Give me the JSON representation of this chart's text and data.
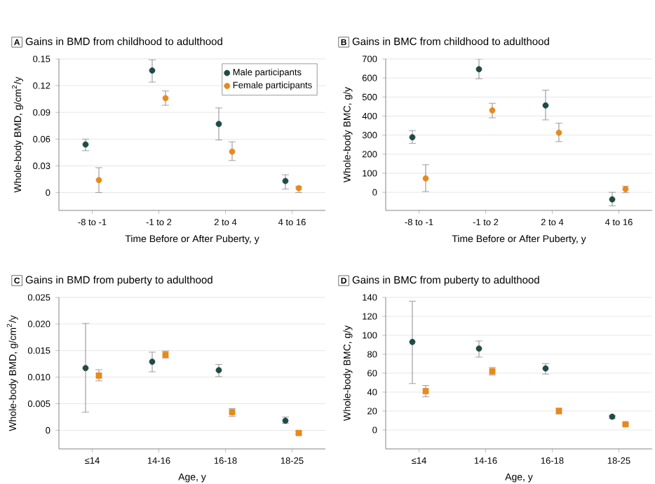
{
  "chart_data": [
    {
      "type": "scatter",
      "title": "Gains in BMD from childhood to adulthood",
      "annotations": [
        "A"
      ],
      "xlabel": "Time Before or After Puberty, y",
      "ylabel": "Whole-body BMD, g/cm$^{2}$/y",
      "categories": [
        "-8 to -1",
        "-1 to 2",
        "2 to 4",
        "4 to 16"
      ],
      "ylim": [
        -0.02,
        0.15
      ],
      "yticks": [
        0,
        0.03,
        0.06,
        0.09,
        0.12,
        0.15
      ],
      "grid": "y",
      "legend": "top right",
      "series": [
        {
          "name": "Male participants",
          "color": "#1f4a45",
          "marker": "circle",
          "values": [
            0.054,
            0.137,
            0.077,
            0.013
          ],
          "errors": [
            [
              0.047,
              0.06
            ],
            [
              0.124,
              0.149
            ],
            [
              0.059,
              0.095
            ],
            [
              0.004,
              0.02
            ]
          ]
        },
        {
          "name": "Female participants",
          "color": "#e8891c",
          "marker": "circle",
          "values": [
            0.014,
            0.106,
            0.046,
            0.005
          ],
          "errors": [
            [
              0,
              0.028
            ],
            [
              0.098,
              0.114
            ],
            [
              0.036,
              0.057
            ],
            [
              0,
              0.007
            ]
          ]
        }
      ]
    },
    {
      "type": "scatter",
      "title": "Gains in BMC from childhood to adulthood",
      "annotations": [
        "B"
      ],
      "xlabel": "Time Before or After Puberty, y",
      "ylabel": "Whole-body BMC, g/y",
      "categories": [
        "-8 to -1",
        "-1 to 2",
        "2 to 4",
        "4 to 16"
      ],
      "ylim": [
        -95,
        700
      ],
      "yticks": [
        0,
        100,
        200,
        300,
        400,
        500,
        600,
        700
      ],
      "grid": "y",
      "series": [
        {
          "color": "#1f4a45",
          "marker": "circle",
          "values": [
            289,
            646,
            456,
            -37
          ],
          "errors": [
            [
              257,
              324
            ],
            [
              596,
              700
            ],
            [
              380,
              536
            ],
            [
              -71,
              0
            ]
          ]
        },
        {
          "color": "#e8891c",
          "marker": "circle",
          "values": [
            73,
            430,
            313,
            17
          ],
          "errors": [
            [
              4,
              145
            ],
            [
              391,
              467
            ],
            [
              266,
              363
            ],
            [
              -2,
              32
            ]
          ]
        }
      ]
    },
    {
      "type": "scatter",
      "title": "Gains in BMD from puberty to adulthood",
      "annotations": [
        "C"
      ],
      "xlabel": "Age, y",
      "ylabel": "Whole-body BMD, g/cm$^{2}$/y",
      "categories": [
        "≤14",
        "14-16",
        "16-18",
        "18-25"
      ],
      "ylim": [
        -0.0035,
        0.025
      ],
      "yticks": [
        0,
        0.005,
        {
          "value": 0.01,
          "label": "0.010"
        },
        0.015,
        {
          "value": 0.02,
          "label": "0.020"
        },
        0.025
      ],
      "grid": "y",
      "series": [
        {
          "color": "#1f4a45",
          "marker": "circle",
          "values": [
            0.0117,
            0.0129,
            0.0113,
            0.0018
          ],
          "errors": [
            [
              0.0034,
              0.0201
            ],
            [
              0.011,
              0.0147
            ],
            [
              0.0101,
              0.0124
            ],
            [
              0.0013,
              0.0025
            ]
          ]
        },
        {
          "color": "#e8891c",
          "marker": "square",
          "values": [
            0.0103,
            0.0142,
            0.0034,
            -0.0005
          ],
          "errors": [
            [
              0.0093,
              0.0114
            ],
            [
              0.0136,
              0.0149
            ],
            [
              0.0026,
              0.0041
            ],
            [
              -0.0008,
              -0.0002
            ]
          ]
        }
      ]
    },
    {
      "type": "scatter",
      "title": "Gains in BMC from puberty to adulthood",
      "annotations": [
        "D"
      ],
      "xlabel": "Age, y",
      "ylabel": "Whole-body BMC, g/y",
      "categories": [
        "≤14",
        "14-16",
        "16-18",
        "18-25"
      ],
      "ylim": [
        -20,
        140
      ],
      "yticks": [
        0,
        20,
        40,
        60,
        80,
        100,
        120,
        140
      ],
      "grid": "y",
      "series": [
        {
          "color": "#1f4a45",
          "marker": "circle",
          "values": [
            93,
            86,
            65,
            14
          ],
          "errors": [
            [
              49,
              136
            ],
            [
              77,
              94
            ],
            [
              59,
              70
            ],
            [
              12,
              15
            ]
          ]
        },
        {
          "color": "#e8891c",
          "marker": "square",
          "values": [
            41,
            62,
            20,
            6
          ],
          "errors": [
            [
              35,
              47
            ],
            [
              58,
              66
            ],
            [
              17,
              23
            ],
            [
              5,
              7
            ]
          ]
        }
      ]
    }
  ]
}
